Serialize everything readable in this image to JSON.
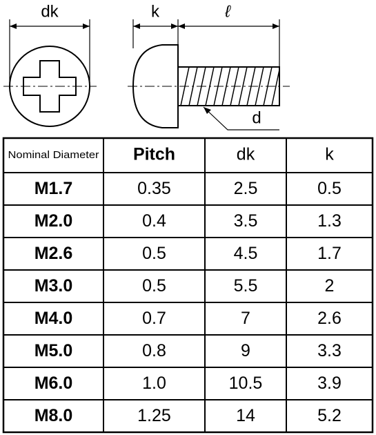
{
  "diagram": {
    "labels": {
      "head_diameter": "dk",
      "head_height": "k",
      "length": "ℓ",
      "thread_diameter": "d"
    }
  },
  "table": {
    "header": [
      "Nominal Diameter",
      "Pitch",
      "dk",
      "k"
    ],
    "rows": [
      [
        "M1.7",
        "0.35",
        "2.5",
        "0.5"
      ],
      [
        "M2.0",
        "0.4",
        "3.5",
        "1.3"
      ],
      [
        "M2.6",
        "0.5",
        "4.5",
        "1.7"
      ],
      [
        "M3.0",
        "0.5",
        "5.5",
        "2"
      ],
      [
        "M4.0",
        "0.7",
        "7",
        "2.6"
      ],
      [
        "M5.0",
        "0.8",
        "9",
        "3.3"
      ],
      [
        "M6.0",
        "1.0",
        "10.5",
        "3.9"
      ],
      [
        "M8.0",
        "1.25",
        "14",
        "5.2"
      ]
    ]
  }
}
